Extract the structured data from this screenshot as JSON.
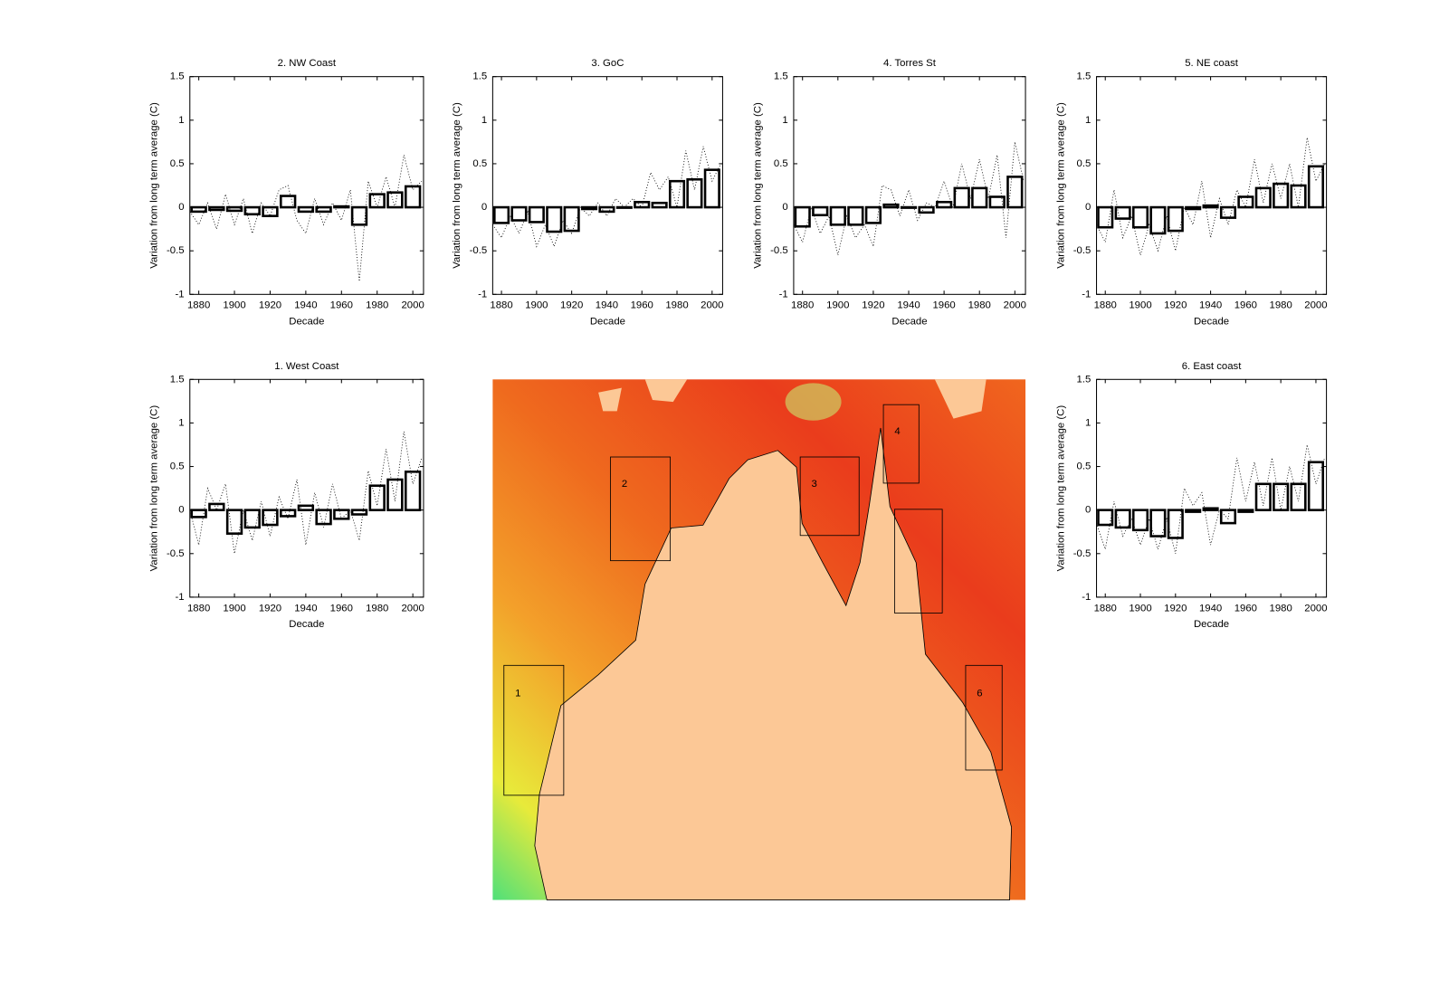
{
  "chart_data": [
    {
      "type": "bar",
      "title": "1. West Coast",
      "x_label": "Decade",
      "y_label": "Variation from long term average (C)",
      "x": [
        1880,
        1890,
        1900,
        1910,
        1920,
        1930,
        1940,
        1950,
        1960,
        1970,
        1980,
        1990,
        2000
      ],
      "values": [
        -0.08,
        0.07,
        -0.27,
        -0.2,
        -0.17,
        -0.07,
        0.05,
        -0.16,
        -0.1,
        -0.05,
        0.28,
        0.35,
        0.44
      ],
      "line_x": [
        1875,
        1880,
        1885,
        1890,
        1895,
        1900,
        1905,
        1910,
        1915,
        1920,
        1925,
        1930,
        1935,
        1940,
        1945,
        1950,
        1955,
        1960,
        1965,
        1970,
        1975,
        1980,
        1985,
        1990,
        1995,
        2000,
        2005
      ],
      "line_values": [
        0.0,
        -0.4,
        0.25,
        0.0,
        0.3,
        -0.5,
        0.0,
        -0.35,
        0.1,
        -0.3,
        0.15,
        -0.1,
        0.35,
        -0.4,
        0.2,
        -0.2,
        0.3,
        -0.1,
        0.0,
        -0.35,
        0.45,
        0.05,
        0.7,
        0.1,
        0.9,
        0.3,
        0.6
      ],
      "color": "#000000",
      "xlim": [
        1875,
        2006
      ],
      "xticks": [
        1880,
        1900,
        1920,
        1940,
        1960,
        1980,
        2000
      ],
      "ylim": [
        -1,
        1.5
      ],
      "yticks": [
        -1,
        -0.5,
        0,
        0.5,
        1,
        1.5
      ]
    },
    {
      "type": "bar",
      "title": "2. NW Coast",
      "x_label": "Decade",
      "y_label": "Variation from long term average (C)",
      "x": [
        1880,
        1890,
        1900,
        1910,
        1920,
        1930,
        1940,
        1950,
        1960,
        1970,
        1980,
        1990,
        2000
      ],
      "values": [
        -0.05,
        -0.03,
        -0.04,
        -0.08,
        -0.1,
        0.13,
        -0.05,
        -0.05,
        0.01,
        -0.2,
        0.15,
        0.17,
        0.24
      ],
      "line_x": [
        1875,
        1880,
        1885,
        1890,
        1895,
        1900,
        1905,
        1910,
        1915,
        1920,
        1925,
        1930,
        1935,
        1940,
        1945,
        1950,
        1955,
        1960,
        1965,
        1970,
        1975,
        1980,
        1985,
        1990,
        1995,
        2000,
        2005
      ],
      "line_values": [
        -0.05,
        -0.2,
        0.05,
        -0.25,
        0.15,
        -0.2,
        0.1,
        -0.3,
        0.05,
        -0.1,
        0.2,
        0.25,
        -0.15,
        -0.3,
        0.1,
        -0.2,
        0.05,
        -0.15,
        0.2,
        -0.85,
        0.3,
        0.0,
        0.35,
        0.0,
        0.6,
        0.2,
        0.3
      ],
      "color": "#000000",
      "xlim": [
        1875,
        2006
      ],
      "xticks": [
        1880,
        1900,
        1920,
        1940,
        1960,
        1980,
        2000
      ],
      "ylim": [
        -1,
        1.5
      ],
      "yticks": [
        -1,
        -0.5,
        0,
        0.5,
        1,
        1.5
      ]
    },
    {
      "type": "bar",
      "title": "3. GoC",
      "x_label": "Decade",
      "y_label": "Variation from long term average (C)",
      "x": [
        1880,
        1890,
        1900,
        1910,
        1920,
        1930,
        1940,
        1950,
        1960,
        1970,
        1980,
        1990,
        2000
      ],
      "values": [
        -0.18,
        -0.15,
        -0.17,
        -0.28,
        -0.27,
        -0.02,
        -0.05,
        0,
        0.06,
        0.05,
        0.3,
        0.32,
        0.43
      ],
      "line_x": [
        1875,
        1880,
        1885,
        1890,
        1895,
        1900,
        1905,
        1910,
        1915,
        1920,
        1925,
        1930,
        1935,
        1940,
        1945,
        1950,
        1955,
        1960,
        1965,
        1970,
        1975,
        1980,
        1985,
        1990,
        1995,
        2000,
        2005
      ],
      "line_values": [
        -0.2,
        -0.35,
        -0.1,
        -0.3,
        -0.05,
        -0.45,
        -0.2,
        -0.45,
        -0.15,
        -0.3,
        0.0,
        -0.1,
        0.05,
        -0.1,
        0.1,
        0.0,
        0.1,
        0.0,
        0.4,
        0.2,
        0.35,
        0.0,
        0.65,
        0.2,
        0.7,
        0.3,
        0.5
      ],
      "color": "#000000",
      "xlim": [
        1875,
        2006
      ],
      "xticks": [
        1880,
        1900,
        1920,
        1940,
        1960,
        1980,
        2000
      ],
      "ylim": [
        -1,
        1.5
      ],
      "yticks": [
        -1,
        -0.5,
        0,
        0.5,
        1,
        1.5
      ]
    },
    {
      "type": "bar",
      "title": "4. Torres St",
      "x_label": "Decade",
      "y_label": "Variation from long term average (C)",
      "x": [
        1880,
        1890,
        1900,
        1910,
        1920,
        1930,
        1940,
        1950,
        1960,
        1970,
        1980,
        1990,
        2000
      ],
      "values": [
        -0.22,
        -0.09,
        -0.2,
        -0.2,
        -0.18,
        0.03,
        0,
        -0.06,
        0.06,
        0.22,
        0.22,
        0.12,
        0.35
      ],
      "line_x": [
        1875,
        1880,
        1885,
        1890,
        1895,
        1900,
        1905,
        1910,
        1915,
        1920,
        1925,
        1930,
        1935,
        1940,
        1945,
        1950,
        1955,
        1960,
        1965,
        1970,
        1975,
        1980,
        1985,
        1990,
        1995,
        2000,
        2005
      ],
      "line_values": [
        -0.2,
        -0.4,
        0.0,
        -0.3,
        -0.1,
        -0.55,
        -0.1,
        -0.35,
        -0.2,
        -0.45,
        0.25,
        0.2,
        -0.1,
        0.2,
        -0.15,
        0.05,
        0.0,
        0.3,
        0.0,
        0.5,
        0.1,
        0.55,
        0.1,
        0.6,
        -0.35,
        0.75,
        0.3
      ],
      "color": "#000000",
      "xlim": [
        1875,
        2006
      ],
      "xticks": [
        1880,
        1900,
        1920,
        1940,
        1960,
        1980,
        2000
      ],
      "ylim": [
        -1,
        1.5
      ],
      "yticks": [
        -1,
        -0.5,
        0,
        0.5,
        1,
        1.5
      ]
    },
    {
      "type": "bar",
      "title": "5. NE coast",
      "x_label": "Decade",
      "y_label": "Variation from long term average (C)",
      "x": [
        1880,
        1890,
        1900,
        1910,
        1920,
        1930,
        1940,
        1950,
        1960,
        1970,
        1980,
        1990,
        2000
      ],
      "values": [
        -0.23,
        -0.13,
        -0.23,
        -0.3,
        -0.27,
        -0.02,
        0.02,
        -0.12,
        0.12,
        0.22,
        0.27,
        0.25,
        0.47
      ],
      "line_x": [
        1875,
        1880,
        1885,
        1890,
        1895,
        1900,
        1905,
        1910,
        1915,
        1920,
        1925,
        1930,
        1935,
        1940,
        1945,
        1950,
        1955,
        1960,
        1965,
        1970,
        1975,
        1980,
        1985,
        1990,
        1995,
        2000,
        2005
      ],
      "line_values": [
        -0.2,
        -0.4,
        0.2,
        -0.35,
        -0.1,
        -0.55,
        -0.2,
        -0.5,
        -0.1,
        -0.5,
        0.0,
        -0.2,
        0.3,
        -0.35,
        0.1,
        -0.2,
        0.2,
        0.0,
        0.55,
        0.05,
        0.5,
        0.1,
        0.5,
        0.0,
        0.8,
        0.3,
        0.5
      ],
      "color": "#000000",
      "xlim": [
        1875,
        2006
      ],
      "xticks": [
        1880,
        1900,
        1920,
        1940,
        1960,
        1980,
        2000
      ],
      "ylim": [
        -1,
        1.5
      ],
      "yticks": [
        -1,
        -0.5,
        0,
        0.5,
        1,
        1.5
      ]
    },
    {
      "type": "bar",
      "title": "6. East coast",
      "x_label": "Decade",
      "y_label": "Variation from long term average (C)",
      "x": [
        1880,
        1890,
        1900,
        1910,
        1920,
        1930,
        1940,
        1950,
        1960,
        1970,
        1980,
        1990,
        2000
      ],
      "values": [
        -0.17,
        -0.2,
        -0.23,
        -0.3,
        -0.32,
        -0.02,
        0.02,
        -0.15,
        -0.02,
        0.3,
        0.3,
        0.3,
        0.55
      ],
      "line_x": [
        1875,
        1880,
        1885,
        1890,
        1895,
        1900,
        1905,
        1910,
        1915,
        1920,
        1925,
        1930,
        1935,
        1940,
        1945,
        1950,
        1955,
        1960,
        1965,
        1970,
        1975,
        1980,
        1985,
        1990,
        1995,
        2000,
        2005
      ],
      "line_values": [
        -0.15,
        -0.45,
        0.1,
        -0.3,
        -0.1,
        -0.4,
        -0.1,
        -0.45,
        -0.1,
        -0.5,
        0.25,
        0.05,
        0.2,
        -0.4,
        0.0,
        -0.1,
        0.6,
        0.1,
        0.55,
        0.05,
        0.6,
        0.0,
        0.5,
        0.1,
        0.75,
        0.3,
        0.6
      ],
      "color": "#000000",
      "xlim": [
        1875,
        2006
      ],
      "xticks": [
        1880,
        1900,
        1920,
        1940,
        1960,
        1980,
        2000
      ],
      "ylim": [
        -1,
        1.5
      ],
      "yticks": [
        -1,
        -0.5,
        0,
        0.5,
        1,
        1.5
      ]
    }
  ],
  "map": {
    "labels": [
      "1",
      "2",
      "3",
      "4",
      "6"
    ]
  }
}
